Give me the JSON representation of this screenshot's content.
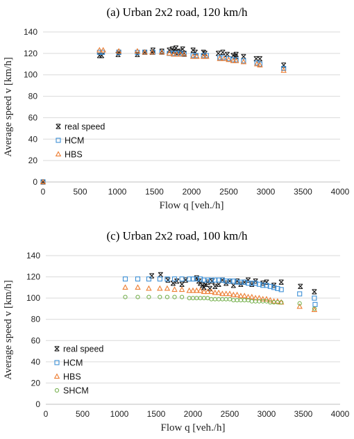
{
  "colors": {
    "real speed": "#1a1a1a",
    "HCM": "#3c8fd6",
    "HBS": "#ed7d31",
    "SHCM": "#70ad47",
    "grid": "#d9d9d9"
  },
  "chart_data": [
    {
      "type": "scatter",
      "title": "(a)  Urban 2x2 road, 120 km/h",
      "xlabel": "Flow q [veh./h]",
      "ylabel": "Average speed v [km/h]",
      "xlim": [
        0,
        4000
      ],
      "ylim": [
        0,
        140
      ],
      "xticks": [
        0,
        500,
        1000,
        1500,
        2000,
        2500,
        3000,
        3500,
        4000
      ],
      "yticks": [
        0,
        20,
        40,
        60,
        80,
        100,
        120,
        140
      ],
      "grid": "horizontal",
      "legend": "left-lower",
      "series": [
        {
          "name": "real speed",
          "marker": "asterisk",
          "points": [
            [
              0,
              0
            ],
            [
              760,
              118
            ],
            [
              790,
              118
            ],
            [
              1010,
              119
            ],
            [
              1020,
              121
            ],
            [
              1270,
              119
            ],
            [
              1370,
              121
            ],
            [
              1470,
              121
            ],
            [
              1480,
              123
            ],
            [
              1600,
              122
            ],
            [
              1700,
              123
            ],
            [
              1740,
              124
            ],
            [
              1760,
              122
            ],
            [
              1790,
              125
            ],
            [
              1820,
              121
            ],
            [
              1850,
              122
            ],
            [
              1880,
              124
            ],
            [
              1900,
              120
            ],
            [
              2020,
              123
            ],
            [
              2050,
              121
            ],
            [
              2160,
              121
            ],
            [
              2180,
              120
            ],
            [
              2360,
              120
            ],
            [
              2420,
              121
            ],
            [
              2480,
              119
            ],
            [
              2560,
              118
            ],
            [
              2590,
              117
            ],
            [
              2600,
              119
            ],
            [
              2700,
              117
            ],
            [
              2870,
              115
            ],
            [
              2920,
              115
            ],
            [
              3240,
              109
            ]
          ]
        },
        {
          "name": "HCM",
          "marker": "square",
          "points": [
            [
              0,
              0
            ],
            [
              760,
              121
            ],
            [
              800,
              121
            ],
            [
              1020,
              121
            ],
            [
              1270,
              121
            ],
            [
              1370,
              121
            ],
            [
              1480,
              121
            ],
            [
              1600,
              121
            ],
            [
              1700,
              120
            ],
            [
              1760,
              120
            ],
            [
              1800,
              120
            ],
            [
              1850,
              120
            ],
            [
              1900,
              119
            ],
            [
              2020,
              118
            ],
            [
              2060,
              118
            ],
            [
              2160,
              118
            ],
            [
              2200,
              118
            ],
            [
              2380,
              116
            ],
            [
              2420,
              116
            ],
            [
              2500,
              115
            ],
            [
              2560,
              114
            ],
            [
              2600,
              114
            ],
            [
              2700,
              113
            ],
            [
              2880,
              111
            ],
            [
              2920,
              110
            ],
            [
              3240,
              106
            ]
          ]
        },
        {
          "name": "HBS",
          "marker": "triangle",
          "points": [
            [
              0,
              0
            ],
            [
              760,
              123
            ],
            [
              810,
              123
            ],
            [
              1020,
              122
            ],
            [
              1270,
              122
            ],
            [
              1370,
              121
            ],
            [
              1470,
              121
            ],
            [
              1600,
              121
            ],
            [
              1700,
              120
            ],
            [
              1760,
              119
            ],
            [
              1800,
              119
            ],
            [
              1850,
              119
            ],
            [
              1900,
              119
            ],
            [
              2020,
              117
            ],
            [
              2070,
              117
            ],
            [
              2160,
              117
            ],
            [
              2200,
              117
            ],
            [
              2380,
              115
            ],
            [
              2440,
              115
            ],
            [
              2500,
              114
            ],
            [
              2560,
              113
            ],
            [
              2600,
              113
            ],
            [
              2700,
              112
            ],
            [
              2880,
              110
            ],
            [
              2920,
              109
            ],
            [
              3240,
              104
            ]
          ]
        }
      ]
    },
    {
      "type": "scatter",
      "title": "(c)  Urban 2x2 road, 100 km/h",
      "xlabel": "Flow q [veh./h]",
      "ylabel": "Average speed v [km/h]",
      "xlim": [
        0,
        4000
      ],
      "ylim": [
        0,
        140
      ],
      "xticks": [
        0,
        500,
        1000,
        1500,
        2000,
        2500,
        3000,
        3500,
        4000
      ],
      "yticks": [
        0,
        20,
        40,
        60,
        80,
        100,
        120,
        140
      ],
      "grid": "horizontal",
      "legend": "left-lower",
      "series": [
        {
          "name": "real speed",
          "marker": "asterisk",
          "points": [
            [
              1440,
              121
            ],
            [
              1560,
              122
            ],
            [
              1660,
              117
            ],
            [
              1730,
              114
            ],
            [
              1780,
              116
            ],
            [
              1850,
              113
            ],
            [
              1900,
              117
            ],
            [
              2050,
              119
            ],
            [
              2080,
              116
            ],
            [
              2100,
              114
            ],
            [
              2130,
              112
            ],
            [
              2150,
              110
            ],
            [
              2170,
              113
            ],
            [
              2200,
              115
            ],
            [
              2230,
              109
            ],
            [
              2260,
              116
            ],
            [
              2300,
              111
            ],
            [
              2350,
              113
            ],
            [
              2400,
              117
            ],
            [
              2450,
              114
            ],
            [
              2500,
              116
            ],
            [
              2550,
              112
            ],
            [
              2600,
              116
            ],
            [
              2650,
              113
            ],
            [
              2700,
              115
            ],
            [
              2750,
              117
            ],
            [
              2800,
              113
            ],
            [
              2850,
              116
            ],
            [
              2950,
              114
            ],
            [
              3000,
              115
            ],
            [
              3100,
              112
            ],
            [
              3200,
              115
            ],
            [
              3460,
              111
            ],
            [
              3650,
              106
            ]
          ]
        },
        {
          "name": "HCM",
          "marker": "square",
          "points": [
            [
              1080,
              118
            ],
            [
              1250,
              118
            ],
            [
              1400,
              118
            ],
            [
              1550,
              118
            ],
            [
              1650,
              118
            ],
            [
              1750,
              118
            ],
            [
              1850,
              118
            ],
            [
              1950,
              118
            ],
            [
              2000,
              118
            ],
            [
              2050,
              118
            ],
            [
              2100,
              118
            ],
            [
              2150,
              117
            ],
            [
              2200,
              117
            ],
            [
              2250,
              117
            ],
            [
              2300,
              117
            ],
            [
              2350,
              117
            ],
            [
              2400,
              117
            ],
            [
              2450,
              116
            ],
            [
              2500,
              116
            ],
            [
              2550,
              116
            ],
            [
              2600,
              115
            ],
            [
              2650,
              115
            ],
            [
              2700,
              115
            ],
            [
              2750,
              114
            ],
            [
              2800,
              114
            ],
            [
              2850,
              114
            ],
            [
              2900,
              113
            ],
            [
              2950,
              112
            ],
            [
              3000,
              112
            ],
            [
              3050,
              111
            ],
            [
              3100,
              110
            ],
            [
              3150,
              109
            ],
            [
              3200,
              108
            ],
            [
              3450,
              104
            ],
            [
              3650,
              100
            ],
            [
              3660,
              94
            ]
          ]
        },
        {
          "name": "HBS",
          "marker": "triangle",
          "points": [
            [
              1080,
              110
            ],
            [
              1250,
              110
            ],
            [
              1400,
              109
            ],
            [
              1550,
              109
            ],
            [
              1650,
              109
            ],
            [
              1750,
              108
            ],
            [
              1850,
              108
            ],
            [
              1950,
              107
            ],
            [
              2000,
              107
            ],
            [
              2050,
              107
            ],
            [
              2100,
              107
            ],
            [
              2150,
              106
            ],
            [
              2200,
              106
            ],
            [
              2250,
              106
            ],
            [
              2300,
              105
            ],
            [
              2350,
              105
            ],
            [
              2400,
              104
            ],
            [
              2450,
              104
            ],
            [
              2500,
              104
            ],
            [
              2550,
              103
            ],
            [
              2600,
              103
            ],
            [
              2650,
              102
            ],
            [
              2700,
              102
            ],
            [
              2750,
              101
            ],
            [
              2800,
              101
            ],
            [
              2850,
              100
            ],
            [
              2900,
              100
            ],
            [
              2950,
              99
            ],
            [
              3000,
              99
            ],
            [
              3050,
              98
            ],
            [
              3100,
              97
            ],
            [
              3150,
              97
            ],
            [
              3200,
              96
            ],
            [
              3450,
              92
            ],
            [
              3650,
              89
            ]
          ]
        },
        {
          "name": "SHCM",
          "marker": "circle",
          "points": [
            [
              1080,
              101
            ],
            [
              1250,
              101
            ],
            [
              1400,
              101
            ],
            [
              1550,
              101
            ],
            [
              1650,
              101
            ],
            [
              1750,
              101
            ],
            [
              1850,
              101
            ],
            [
              1950,
              100
            ],
            [
              2000,
              100
            ],
            [
              2050,
              100
            ],
            [
              2100,
              100
            ],
            [
              2150,
              100
            ],
            [
              2200,
              100
            ],
            [
              2250,
              99
            ],
            [
              2300,
              99
            ],
            [
              2350,
              99
            ],
            [
              2400,
              99
            ],
            [
              2450,
              99
            ],
            [
              2500,
              99
            ],
            [
              2550,
              98
            ],
            [
              2600,
              98
            ],
            [
              2650,
              98
            ],
            [
              2700,
              98
            ],
            [
              2750,
              98
            ],
            [
              2800,
              97
            ],
            [
              2850,
              97
            ],
            [
              2900,
              97
            ],
            [
              2950,
              97
            ],
            [
              3000,
              97
            ],
            [
              3050,
              96
            ],
            [
              3100,
              96
            ],
            [
              3150,
              96
            ],
            [
              3200,
              96
            ],
            [
              3450,
              95
            ],
            [
              3650,
              90
            ]
          ]
        }
      ]
    }
  ]
}
